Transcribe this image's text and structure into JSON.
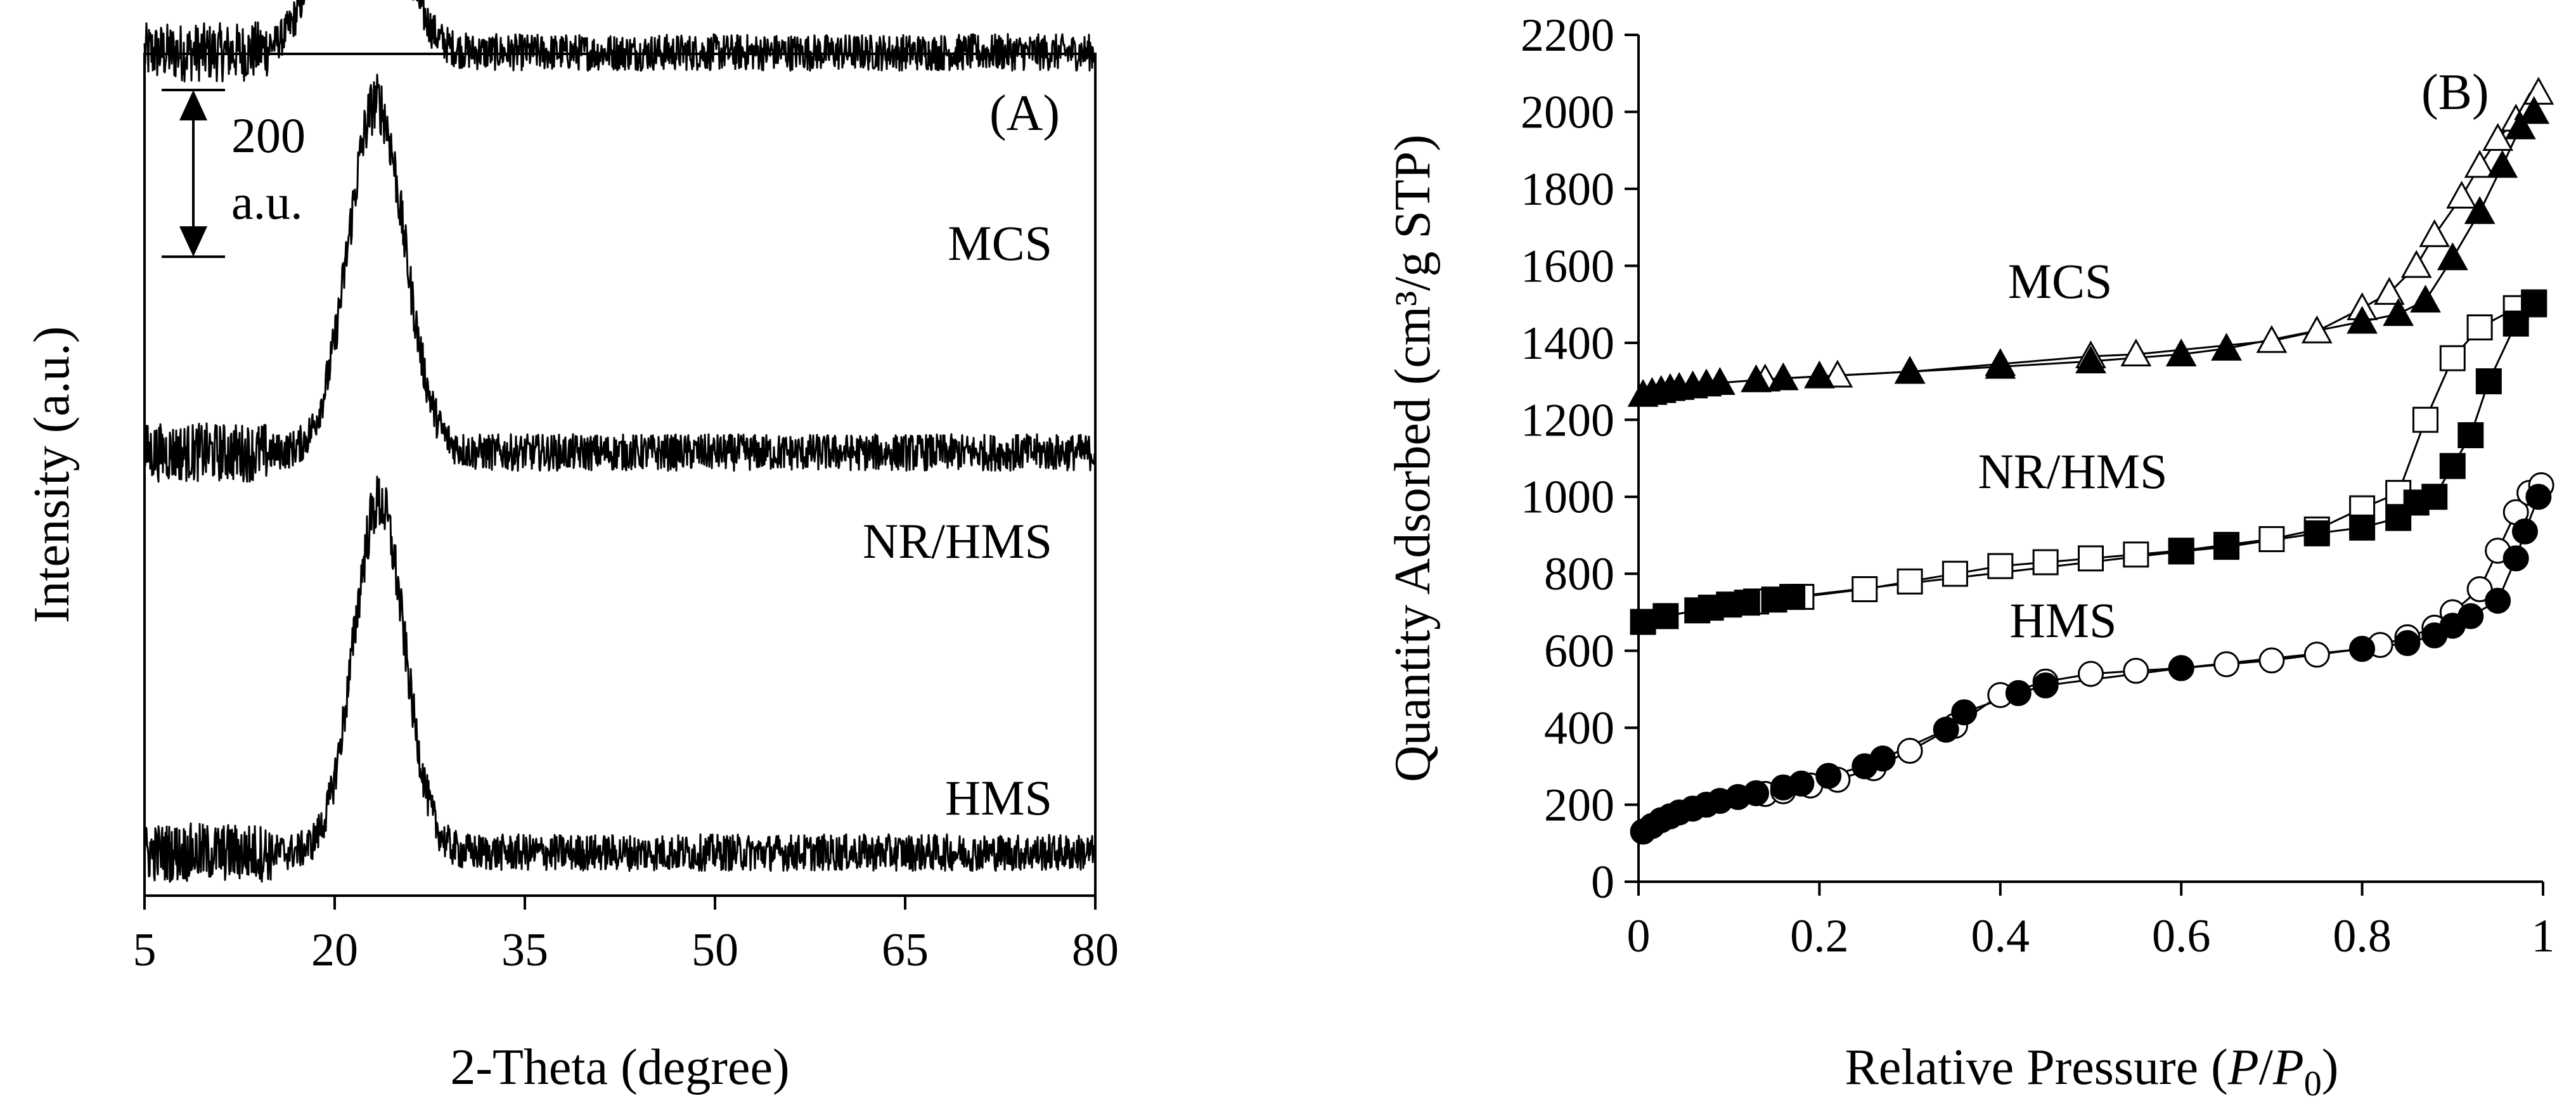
{
  "chart_data": [
    {
      "type": "line",
      "panel": "(A)",
      "xlabel": "2-Theta (degree)",
      "ylabel": "Intensity (a.u.)",
      "xlim": [
        5,
        80
      ],
      "xticks": [
        5,
        20,
        35,
        50,
        65,
        80
      ],
      "x_tick_labels": [
        "5",
        "20",
        "35",
        "50",
        "65",
        "80"
      ],
      "scale_bar": {
        "value": "200",
        "unit": "a.u."
      },
      "series": [
        {
          "name": "MCS",
          "baseline": 960,
          "peak_center": 22.0,
          "peak_height": 300,
          "peak_width": 2.6,
          "noise": 22
        },
        {
          "name": "NR/HMS",
          "baseline": 480,
          "peak_center": 23.3,
          "peak_height": 420,
          "peak_width": 2.2,
          "noise": 22
        },
        {
          "name": "HMS",
          "baseline": 0,
          "peak_center": 23.5,
          "peak_height": 420,
          "peak_width": 2.0,
          "noise": 22
        }
      ]
    },
    {
      "type": "scatter",
      "panel": "(B)",
      "xlabel_main": "Relative Pressure (",
      "xlabel_p": "P",
      "xlabel_slash": "/",
      "xlabel_p0": "P",
      "xlabel_sub": "0",
      "xlabel_close": ")",
      "ylabel": "Quantity Adsorbed (cm³/g STP)",
      "xlim": [
        0,
        1
      ],
      "ylim": [
        0,
        2200
      ],
      "x_tick_labels": [
        "0",
        "0.2",
        "0.4",
        "0.6",
        "0.8",
        "1"
      ],
      "y_tick_labels": [
        "0",
        "200",
        "400",
        "600",
        "800",
        "1000",
        "1200",
        "1400",
        "1600",
        "1800",
        "2000",
        "2200"
      ],
      "legend_note": "filled markers = adsorption, open markers = desorption",
      "series": [
        {
          "name": "MCS",
          "marker": "triangle",
          "adsorption": [
            [
              0.005,
              1265
            ],
            [
              0.015,
              1270
            ],
            [
              0.025,
              1275
            ],
            [
              0.035,
              1280
            ],
            [
              0.045,
              1283
            ],
            [
              0.06,
              1287
            ],
            [
              0.075,
              1292
            ],
            [
              0.09,
              1296
            ],
            [
              0.13,
              1303
            ],
            [
              0.16,
              1308
            ],
            [
              0.2,
              1313
            ],
            [
              0.3,
              1325
            ],
            [
              0.4,
              1338
            ],
            [
              0.5,
              1352
            ],
            [
              0.6,
              1370
            ],
            [
              0.65,
              1385
            ],
            [
              0.8,
              1455
            ],
            [
              0.84,
              1475
            ],
            [
              0.87,
              1510
            ],
            [
              0.9,
              1620
            ],
            [
              0.93,
              1740
            ],
            [
              0.955,
              1860
            ],
            [
              0.975,
              1960
            ],
            [
              0.99,
              2000
            ]
          ],
          "desorption": [
            [
              0.14,
              1305
            ],
            [
              0.22,
              1315
            ],
            [
              0.3,
              1325
            ],
            [
              0.4,
              1345
            ],
            [
              0.5,
              1365
            ],
            [
              0.55,
              1370
            ],
            [
              0.7,
              1405
            ],
            [
              0.75,
              1430
            ],
            [
              0.8,
              1490
            ],
            [
              0.83,
              1530
            ],
            [
              0.86,
              1600
            ],
            [
              0.88,
              1680
            ],
            [
              0.91,
              1780
            ],
            [
              0.93,
              1860
            ],
            [
              0.95,
              1930
            ],
            [
              0.97,
              1980
            ],
            [
              0.985,
              2010
            ],
            [
              0.995,
              2050
            ]
          ]
        },
        {
          "name": "NR/HMS",
          "marker": "square",
          "adsorption": [
            [
              0.005,
              675
            ],
            [
              0.03,
              690
            ],
            [
              0.065,
              705
            ],
            [
              0.08,
              712
            ],
            [
              0.1,
              720
            ],
            [
              0.12,
              725
            ],
            [
              0.15,
              733
            ],
            [
              0.17,
              740
            ],
            [
              0.6,
              858
            ],
            [
              0.65,
              870
            ],
            [
              0.75,
              905
            ],
            [
              0.8,
              920
            ],
            [
              0.84,
              945
            ],
            [
              0.86,
              985
            ],
            [
              0.88,
              1000
            ],
            [
              0.9,
              1080
            ],
            [
              0.92,
              1160
            ],
            [
              0.94,
              1300
            ],
            [
              0.97,
              1450
            ],
            [
              0.99,
              1500
            ]
          ],
          "desorption": [
            [
              0.13,
              728
            ],
            [
              0.18,
              740
            ],
            [
              0.25,
              760
            ],
            [
              0.3,
              780
            ],
            [
              0.35,
              800
            ],
            [
              0.4,
              820
            ],
            [
              0.45,
              830
            ],
            [
              0.5,
              840
            ],
            [
              0.55,
              850
            ],
            [
              0.6,
              860
            ],
            [
              0.65,
              875
            ],
            [
              0.7,
              890
            ],
            [
              0.75,
              915
            ],
            [
              0.8,
              970
            ],
            [
              0.84,
              1010
            ],
            [
              0.87,
              1200
            ],
            [
              0.9,
              1360
            ],
            [
              0.93,
              1440
            ],
            [
              0.97,
              1490
            ],
            [
              0.99,
              1505
            ]
          ]
        },
        {
          "name": "HMS",
          "marker": "circle",
          "adsorption": [
            [
              0.005,
              130
            ],
            [
              0.015,
              145
            ],
            [
              0.025,
              160
            ],
            [
              0.035,
              170
            ],
            [
              0.045,
              180
            ],
            [
              0.06,
              190
            ],
            [
              0.075,
              200
            ],
            [
              0.09,
              210
            ],
            [
              0.11,
              220
            ],
            [
              0.13,
              230
            ],
            [
              0.16,
              245
            ],
            [
              0.18,
              255
            ],
            [
              0.21,
              275
            ],
            [
              0.25,
              300
            ],
            [
              0.27,
              320
            ],
            [
              0.34,
              395
            ],
            [
              0.36,
              440
            ],
            [
              0.42,
              490
            ],
            [
              0.45,
              510
            ],
            [
              0.6,
              555
            ],
            [
              0.8,
              605
            ],
            [
              0.85,
              620
            ],
            [
              0.88,
              640
            ],
            [
              0.9,
              665
            ],
            [
              0.92,
              690
            ],
            [
              0.95,
              730
            ],
            [
              0.97,
              840
            ],
            [
              0.98,
              910
            ],
            [
              0.995,
              1000
            ]
          ],
          "desorption": [
            [
              0.14,
              228
            ],
            [
              0.16,
              235
            ],
            [
              0.19,
              250
            ],
            [
              0.22,
              265
            ],
            [
              0.26,
              295
            ],
            [
              0.3,
              340
            ],
            [
              0.35,
              405
            ],
            [
              0.4,
              485
            ],
            [
              0.45,
              520
            ],
            [
              0.5,
              540
            ],
            [
              0.55,
              548
            ],
            [
              0.6,
              555
            ],
            [
              0.65,
              565
            ],
            [
              0.7,
              575
            ],
            [
              0.75,
              590
            ],
            [
              0.8,
              605
            ],
            [
              0.82,
              615
            ],
            [
              0.85,
              635
            ],
            [
              0.88,
              660
            ],
            [
              0.9,
              700
            ],
            [
              0.93,
              760
            ],
            [
              0.95,
              860
            ],
            [
              0.97,
              960
            ],
            [
              0.985,
              1010
            ],
            [
              0.998,
              1030
            ]
          ]
        }
      ]
    }
  ]
}
